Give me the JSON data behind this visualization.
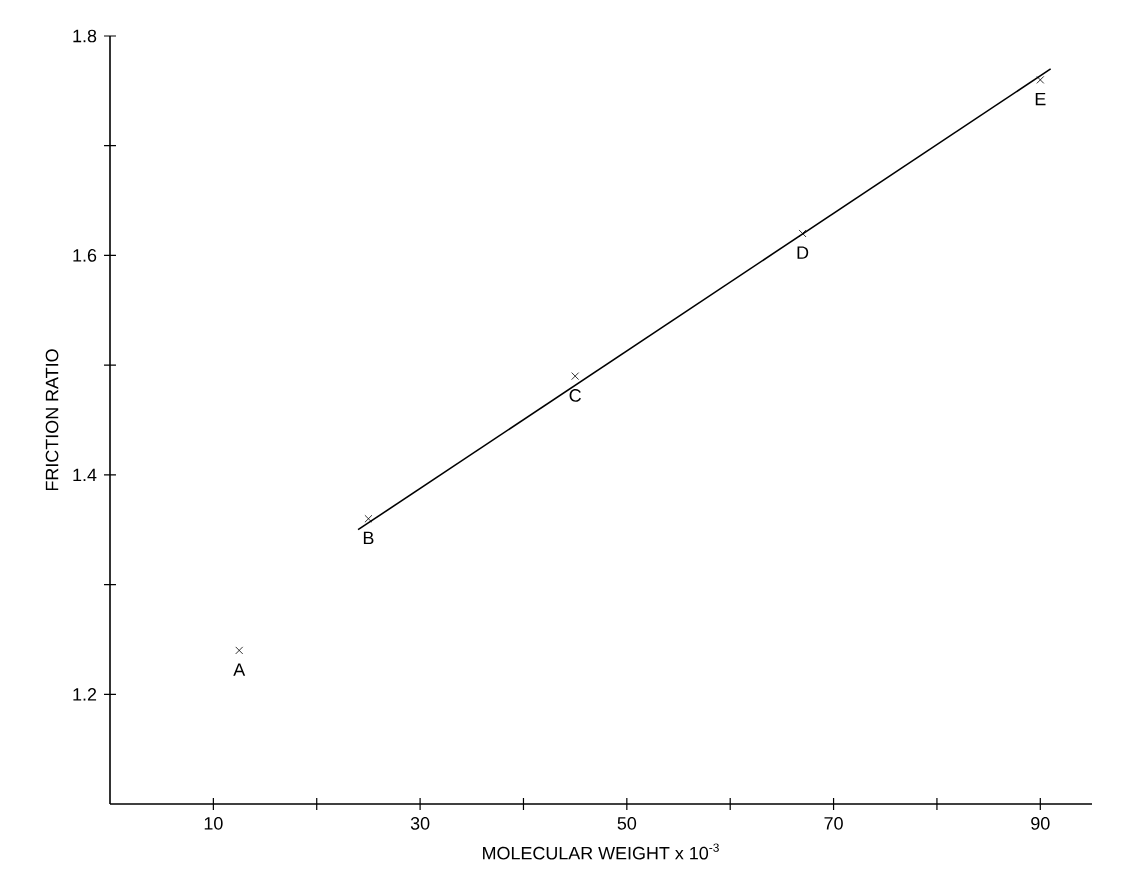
{
  "chart_data": {
    "type": "scatter",
    "xlabel": "MOLECULAR WEIGHT x 10$^{-3}$",
    "ylabel": "FRICTION RATIO",
    "xlim": [
      0,
      95
    ],
    "ylim": [
      1.1,
      1.8
    ],
    "xticks": [
      10,
      {
        "value": 20,
        "label": null
      },
      30,
      {
        "value": 40,
        "label": null
      },
      50,
      {
        "value": 60,
        "label": null
      },
      70,
      {
        "value": 80,
        "label": null
      },
      90
    ],
    "yticks": [
      1.2,
      {
        "value": 1.3,
        "label": null
      },
      1.4,
      {
        "value": 1.5,
        "label": null
      },
      1.6,
      {
        "value": 1.7,
        "label": null
      },
      1.8
    ],
    "marker": "cross",
    "series": [
      {
        "color": "#000000",
        "x": [
          12.5,
          25,
          45,
          67,
          90
        ],
        "values": [
          1.24,
          1.36,
          1.49,
          1.62,
          1.76
        ]
      },
      {
        "type": "line",
        "color": "#000000",
        "line_style": "solid",
        "marker": "none",
        "x": [
          24,
          91
        ],
        "values": [
          1.35,
          1.77
        ]
      }
    ],
    "annotations": [
      {
        "text": "A",
        "x": 12.5,
        "y": 1.24
      },
      {
        "text": "B",
        "x": 25,
        "y": 1.36
      },
      {
        "text": "C",
        "x": 45,
        "y": 1.49
      },
      {
        "text": "D",
        "x": 67,
        "y": 1.62
      },
      {
        "text": "E",
        "x": 90,
        "y": 1.76
      }
    ]
  }
}
